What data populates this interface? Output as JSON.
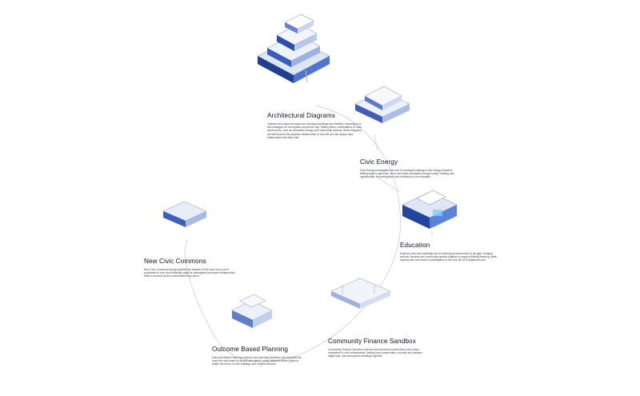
{
  "diagram": {
    "nodes": [
      {
        "id": "architectural-diagrams",
        "title": "Architectural Diagrams",
        "description": "Outlines new ways we might use municipal buildings and facilities, allowing us to test strategies on real spaces across the city. Testing future combinations of uses and tenures, such as renewable energy and community anchors, these diagrams are built around the physical infrastructure of civic life and the spaces and relationships that they hold."
      },
      {
        "id": "civic-energy",
        "title": "Civic Energy",
        "description": "Civic Energy investigates the role of municipal buildings in the energy transition, testing ways to generate, store and share renewable energy locally, creating new opportunities for participation and ownership in the transition."
      },
      {
        "id": "education",
        "title": "Education",
        "description": "Explores how civic buildings can be learning environments for all ages, bringing schools, libraries and community spaces together to support lifelong learning, skills sharing and new forms of participation in the civic life of a neighbourhood."
      },
      {
        "id": "community-finance-sandbox",
        "title": "Community Finance Sandbox",
        "description": "Community Finance Sandbox explores new financial models that could unlock investment in civic infrastructure, testing how communities, councils and partners might fund, own and govern buildings together."
      },
      {
        "id": "outcome-based-planning",
        "title": "Outcome Based Planning",
        "description": "Outcome Based Planning explores how planning decisions can be guided by long term outcomes for people and places, using data and shared goals to shape the future of civic buildings and neighbourhoods."
      },
      {
        "id": "new-civic-commons",
        "title": "New Civic Commons",
        "description": "New Civic Commons brings together the strands of this work into a set of proposals for how civic buildings might be reimagined as shared infrastructure held in common by the communities they serve."
      }
    ]
  },
  "colors": {
    "accent": "#4b6fd8",
    "ring": "#c3c9d6",
    "title": "#111522",
    "text": "#3a3f4c"
  }
}
